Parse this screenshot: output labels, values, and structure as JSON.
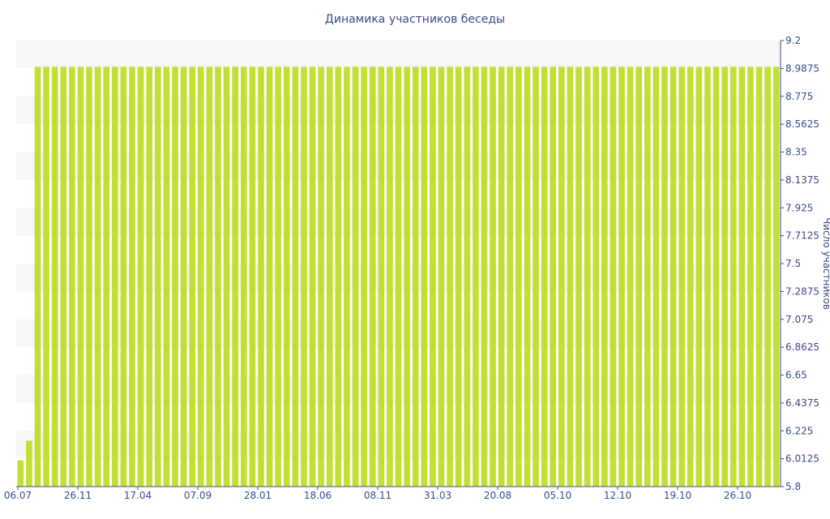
{
  "chart_data": {
    "type": "bar",
    "title": "Динамика участников беседы",
    "ylabel": "Число участников",
    "ylim": [
      5.8,
      9.2
    ],
    "y_ticks": [
      "9.2",
      "8.9875",
      "8.775",
      "8.5625",
      "8.35",
      "8.1375",
      "7.925",
      "7.7125",
      "7.5",
      "7.2875",
      "7.075",
      "6.8625",
      "6.65",
      "6.4375",
      "6.225",
      "6.0125",
      "5.8"
    ],
    "x_tick_labels": [
      "06.07",
      "26.11",
      "17.04",
      "07.09",
      "28.01",
      "18.06",
      "08.11",
      "31.03",
      "20.08",
      "05.10",
      "12.10",
      "19.10",
      "26.10"
    ],
    "bar_count": 89,
    "leading_values": [
      6.0,
      6.15
    ],
    "steady_value": 9.0,
    "colors": {
      "bar": "#c2e033",
      "text": "#3a4a8a",
      "band": "#f7f7f7",
      "axis": "#3a4a8a"
    }
  }
}
